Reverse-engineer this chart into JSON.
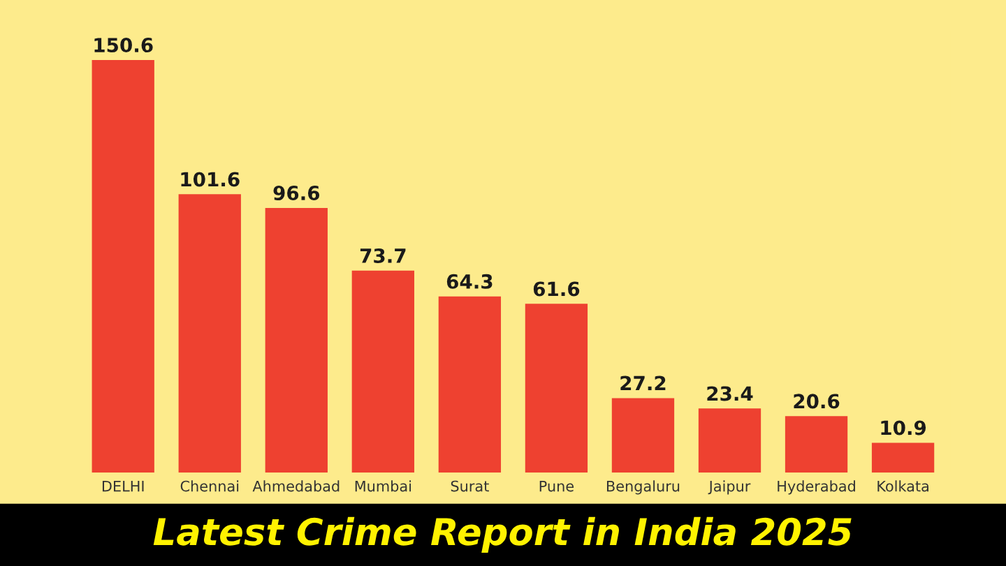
{
  "chart_data": {
    "type": "bar",
    "title": "Latest Crime Report in India 2025",
    "categories": [
      "DELHI",
      "Chennai",
      "Ahmedabad",
      "Mumbai",
      "Surat",
      "Pune",
      "Bengaluru",
      "Jaipur",
      "Hyderabad",
      "Kolkata"
    ],
    "values": [
      150.6,
      101.6,
      96.6,
      73.7,
      64.3,
      61.6,
      27.2,
      23.4,
      20.6,
      10.9
    ],
    "color": "#ee4130",
    "data_labels": true,
    "grid": false,
    "legend": false
  }
}
